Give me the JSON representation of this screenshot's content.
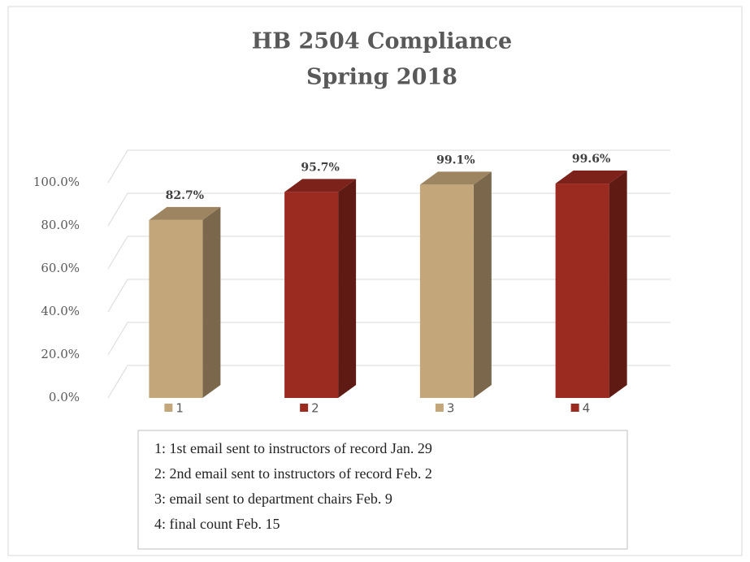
{
  "chart_data": {
    "type": "bar3d",
    "title": "HB 2504 Compliance",
    "subtitle": "Spring 2018",
    "categories": [
      "1",
      "2",
      "3",
      "4"
    ],
    "values": [
      82.7,
      95.7,
      99.1,
      99.6
    ],
    "value_labels": [
      "82.7%",
      "95.7%",
      "99.1%",
      "99.6%"
    ],
    "colors": [
      "#c4a67b",
      "#9b2a20",
      "#c4a67b",
      "#9b2a20"
    ],
    "ylim": [
      0,
      100
    ],
    "yticks": [
      {
        "value": 0,
        "label": "0.0%"
      },
      {
        "value": 20,
        "label": "20.0%"
      },
      {
        "value": 40,
        "label": "40.0%"
      },
      {
        "value": 60,
        "label": "60.0%"
      },
      {
        "value": 80,
        "label": "80.0%"
      },
      {
        "value": 100,
        "label": "100.0%"
      }
    ],
    "grid": true,
    "annotations": [
      "1: 1st email sent to instructors of record Jan. 29",
      "2: 2nd email sent to instructors of record Feb. 2",
      "3: email sent to department chairs Feb. 9",
      "4: final count Feb. 15"
    ]
  }
}
